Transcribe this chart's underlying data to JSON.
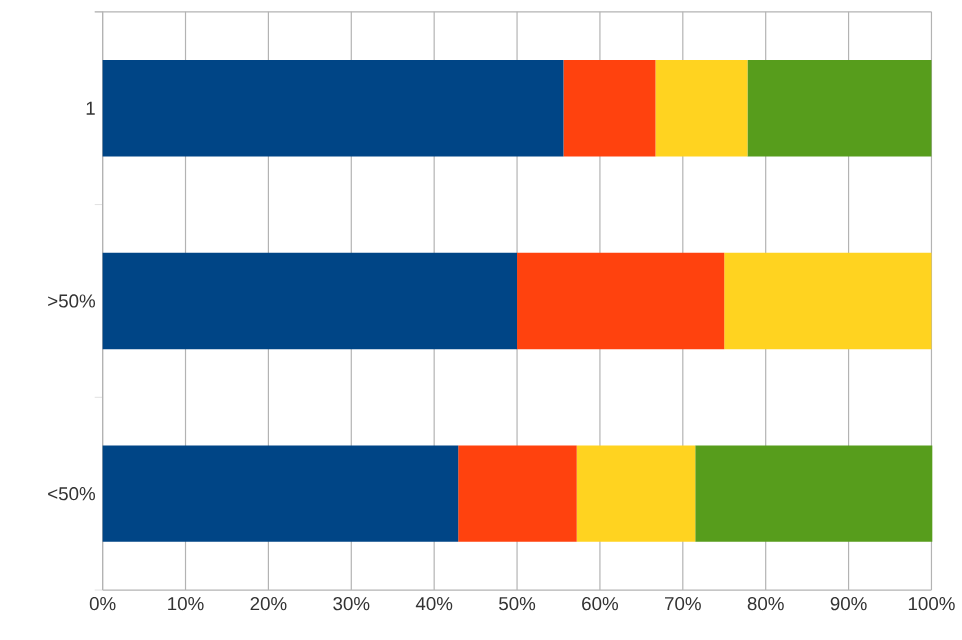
{
  "chart_data": {
    "type": "bar",
    "orientation": "horizontal",
    "stacked": true,
    "categories": [
      "1",
      ">50%",
      "<50%"
    ],
    "series": [
      {
        "color": "#004586",
        "values": [
          55.6,
          50,
          42.9
        ]
      },
      {
        "color": "#ff420e",
        "values": [
          11.1,
          25,
          14.3
        ]
      },
      {
        "color": "#ffd320",
        "values": [
          11.1,
          25,
          14.3
        ]
      },
      {
        "color": "#579d1c",
        "values": [
          22.2,
          0,
          28.6
        ]
      }
    ],
    "xlim": [
      0,
      100
    ],
    "xticks": [
      {
        "value": 0,
        "label": "0%"
      },
      {
        "value": 10,
        "label": "10%"
      },
      {
        "value": 20,
        "label": "20%"
      },
      {
        "value": 30,
        "label": "30%"
      },
      {
        "value": 40,
        "label": "40%"
      },
      {
        "value": 50,
        "label": "50%"
      },
      {
        "value": 60,
        "label": "60%"
      },
      {
        "value": 70,
        "label": "70%"
      },
      {
        "value": 80,
        "label": "80%"
      },
      {
        "value": 90,
        "label": "90%"
      },
      {
        "value": 100,
        "label": "100%"
      }
    ],
    "grid": "x"
  }
}
